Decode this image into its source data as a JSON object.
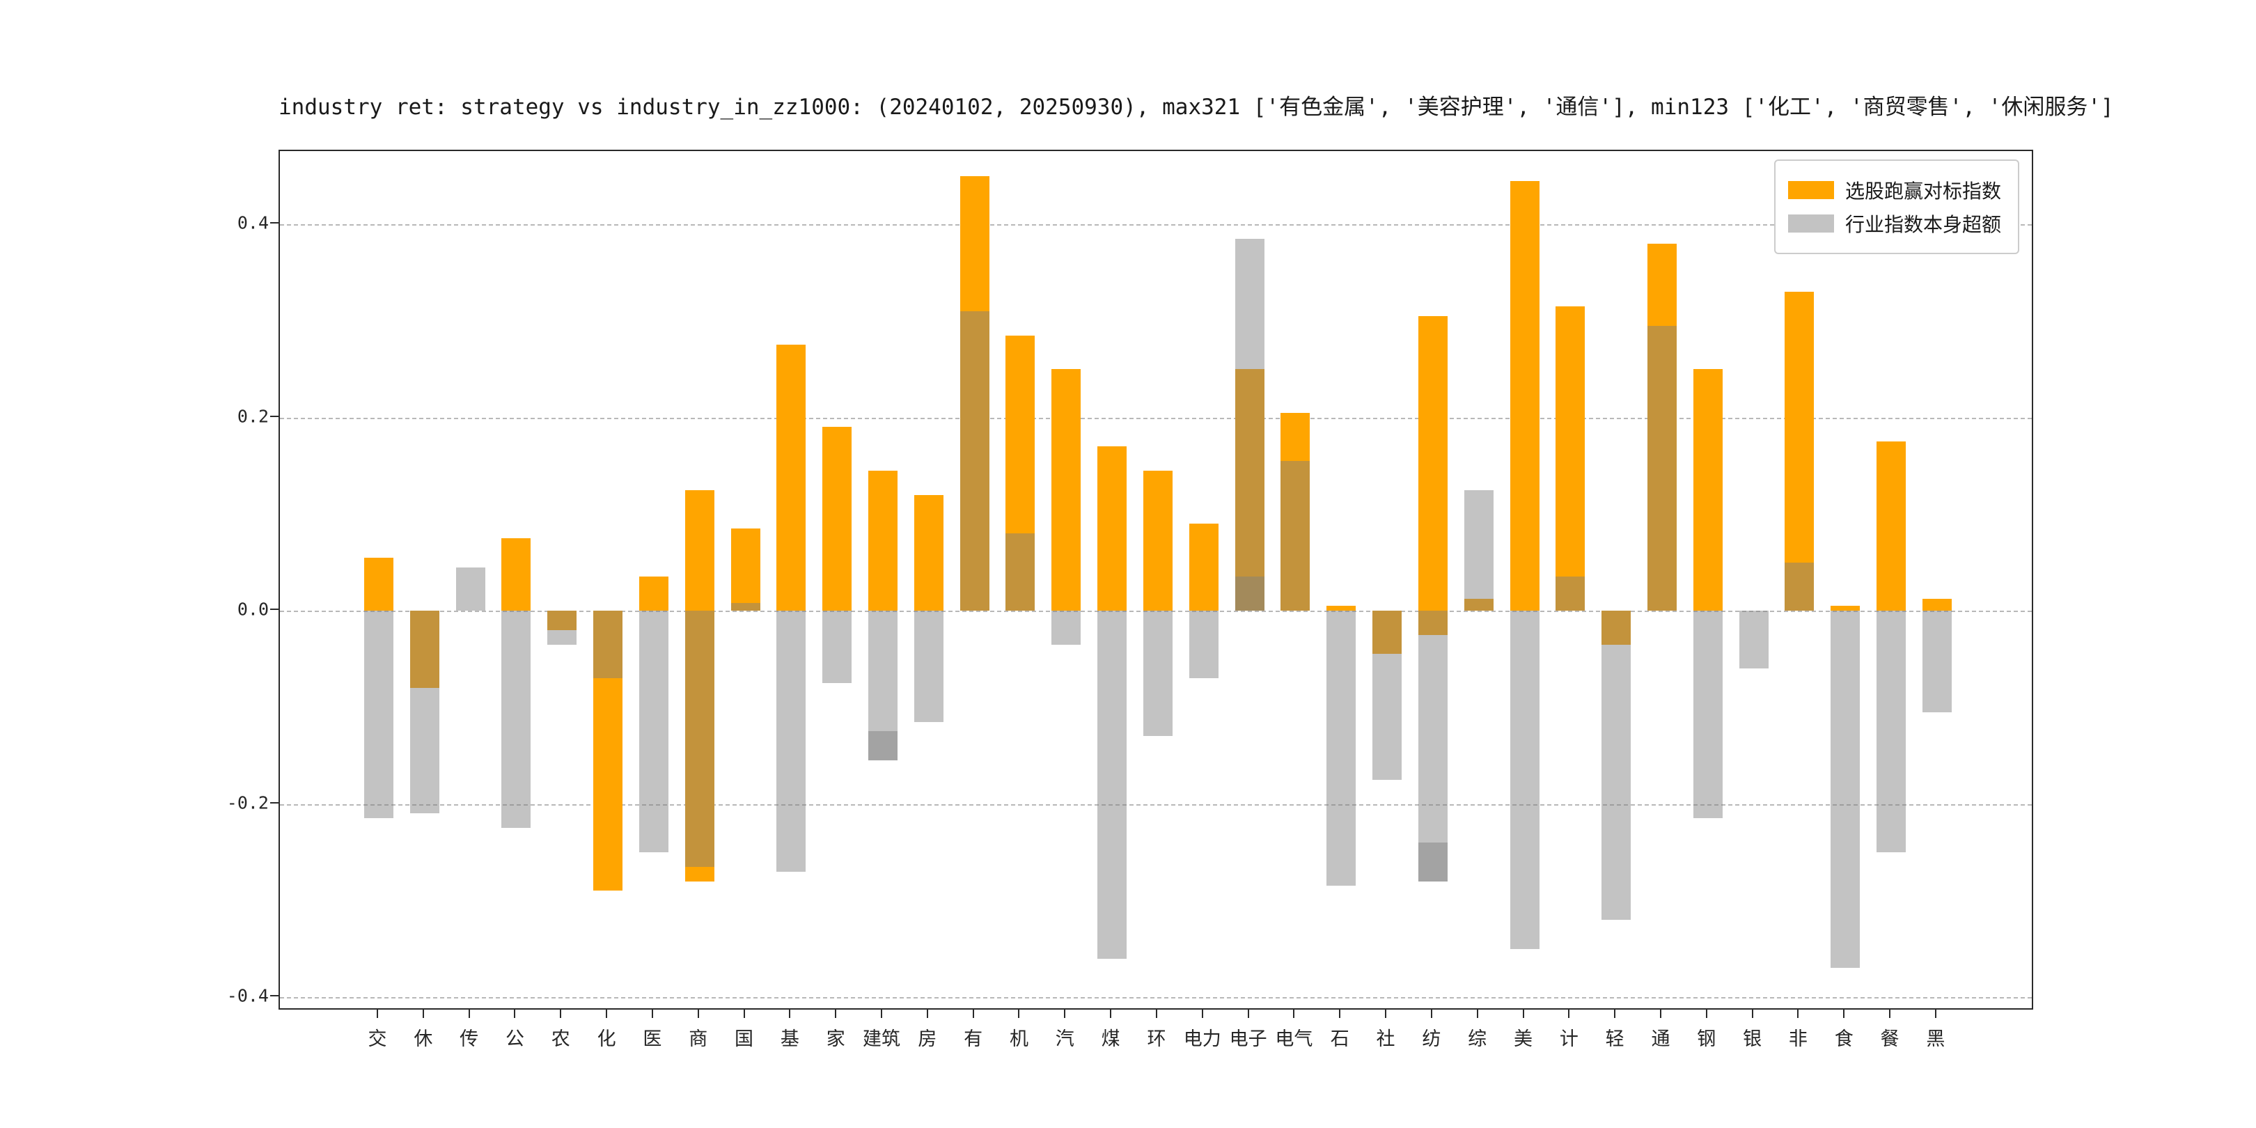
{
  "title": "industry ret: strategy vs industry_in_zz1000: (20240102, 20250930), max321 ['有色金属', '美容护理', '通信'], min123 ['化工', '商贸零售', '休闲服务']",
  "legend": [
    {
      "label": "选股跑赢对标指数",
      "color": "#FFA500"
    },
    {
      "label": "行业指数本身超额",
      "color": "#C3C3C3"
    }
  ],
  "y_axis": {
    "ticks": [
      0.4,
      0.2,
      0.0,
      -0.2,
      -0.4
    ],
    "labels": [
      "0.4",
      "0.2",
      "0.0",
      "-0.2",
      "-0.4"
    ]
  },
  "chart_data": {
    "type": "bar",
    "title": "industry ret: strategy vs industry_in_zz1000: (20240102, 20250930), max321 ['有色金属', '美容护理', '通信'], min123 ['化工', '商贸零售', '休闲服务']",
    "grid": "horizontal-dashed",
    "legend_position": "upper-right",
    "ylim": [
      -0.414,
      0.476
    ],
    "bar_style": "overlapping, orange solid drawn first, translucent gray drawn on top (overlap renders tan)",
    "categories": [
      "交",
      "休",
      "传",
      "公",
      "农",
      "化",
      "医",
      "商",
      "国",
      "基",
      "家",
      "建筑",
      "房",
      "有",
      "机",
      "汽",
      "煤",
      "环",
      "电力",
      "电子",
      "电气",
      "石",
      "社",
      "纺",
      "综",
      "美",
      "计",
      "轻",
      "通",
      "钢",
      "银",
      "非",
      "食",
      "餐",
      "黑"
    ],
    "series": [
      {
        "name": "选股跑赢对标指数",
        "color": "#FFA500",
        "values": [
          0.055,
          -0.08,
          0.0,
          0.075,
          -0.02,
          -0.29,
          0.035,
          0.125,
          0.085,
          0.275,
          0.19,
          0.145,
          0.12,
          0.45,
          0.285,
          0.25,
          0.17,
          0.145,
          0.09,
          0.25,
          0.205,
          0.005,
          -0.045,
          0.305,
          0.012,
          0.445,
          0.315,
          -0.035,
          0.38,
          0.25,
          0.0,
          0.33,
          0.005,
          0.175,
          0.012
        ]
      },
      {
        "name": "行业指数本身超额",
        "color": "rgba(128,128,128,0.47)",
        "values": [
          -0.215,
          -0.21,
          0.045,
          -0.225,
          -0.035,
          -0.07,
          -0.25,
          -0.265,
          0.008,
          -0.27,
          -0.075,
          -0.155,
          -0.115,
          0.31,
          0.08,
          -0.035,
          -0.36,
          -0.13,
          -0.07,
          0.385,
          0.155,
          -0.285,
          -0.175,
          -0.28,
          0.125,
          -0.35,
          0.035,
          -0.32,
          0.295,
          -0.215,
          -0.06,
          0.05,
          -0.37,
          -0.25,
          -0.105
        ]
      }
    ],
    "extra_bars": [
      {
        "category": "商",
        "series": "选股跑赢对标指数",
        "from": 0,
        "to": -0.28
      },
      {
        "category": "建筑",
        "series": "行业指数本身超额",
        "from": -0.125,
        "to": -0.155
      },
      {
        "category": "电子",
        "series": "行业指数本身超额",
        "from": 0,
        "to": 0.035
      },
      {
        "category": "纺",
        "series": "选股跑赢对标指数",
        "from": 0,
        "to": -0.025
      },
      {
        "category": "纺",
        "series": "行业指数本身超额",
        "from": -0.24,
        "to": -0.28
      }
    ]
  }
}
